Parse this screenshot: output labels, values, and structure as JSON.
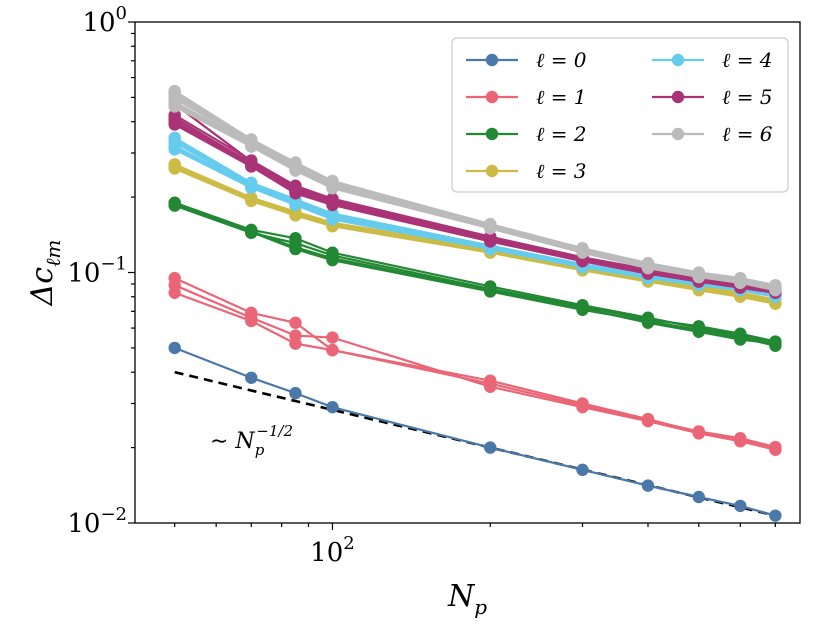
{
  "chart_data": {
    "type": "line",
    "xscale": "log",
    "yscale": "log",
    "xlim": [
      42,
      780
    ],
    "ylim": [
      0.01,
      1.0
    ],
    "xlabel": "N_p",
    "ylabel": "Δc_ℓm",
    "x_tick_labels": [
      {
        "base": "10",
        "exp": "2",
        "value": 100
      }
    ],
    "y_tick_labels": [
      {
        "base": "10",
        "exp": "−2",
        "value": 0.01
      },
      {
        "base": "10",
        "exp": "−1",
        "value": 0.1
      },
      {
        "base": "10",
        "exp": "0",
        "value": 1.0
      }
    ],
    "x": [
      50,
      70,
      85,
      100,
      200,
      300,
      400,
      500,
      600,
      700
    ],
    "legend": {
      "placement": "top-right",
      "columns": 2,
      "frame": true
    },
    "series": [
      {
        "name": "ℓ = 0",
        "color": "#4a78a8",
        "curves": [
          [
            0.05,
            0.038,
            0.033,
            0.029,
            0.02,
            0.0163,
            0.0141,
            0.0127,
            0.0117,
            0.0107
          ]
        ]
      },
      {
        "name": "ℓ = 1",
        "color": "#ea6677",
        "curves": [
          [
            0.095,
            0.069,
            0.063,
            0.049,
            0.037,
            0.03,
            0.026,
            0.023,
            0.0215,
            0.0198
          ],
          [
            0.089,
            0.066,
            0.056,
            0.055,
            0.035,
            0.029,
            0.0255,
            0.0228,
            0.0212,
            0.0196
          ],
          [
            0.083,
            0.064,
            0.052,
            0.049,
            0.036,
            0.0295,
            0.0258,
            0.0232,
            0.0218,
            0.0201
          ]
        ]
      },
      {
        "name": "ℓ = 2",
        "color": "#238833",
        "curves": [
          [
            0.19,
            0.148,
            0.137,
            0.12,
            0.088,
            0.074,
            0.066,
            0.06,
            0.056,
            0.052
          ],
          [
            0.187,
            0.145,
            0.124,
            0.112,
            0.084,
            0.071,
            0.064,
            0.059,
            0.055,
            0.051
          ],
          [
            0.185,
            0.144,
            0.131,
            0.117,
            0.086,
            0.073,
            0.065,
            0.061,
            0.057,
            0.053
          ],
          [
            0.188,
            0.146,
            0.126,
            0.114,
            0.085,
            0.072,
            0.063,
            0.058,
            0.054,
            0.052
          ]
        ]
      },
      {
        "name": "ℓ = 3",
        "color": "#ccbb44",
        "curves": [
          [
            0.27,
            0.199,
            0.175,
            0.158,
            0.124,
            0.105,
            0.095,
            0.087,
            0.082,
            0.077
          ],
          [
            0.265,
            0.196,
            0.171,
            0.155,
            0.122,
            0.103,
            0.093,
            0.086,
            0.081,
            0.076
          ],
          [
            0.26,
            0.193,
            0.169,
            0.153,
            0.12,
            0.102,
            0.092,
            0.085,
            0.08,
            0.075
          ],
          [
            0.268,
            0.198,
            0.173,
            0.157,
            0.123,
            0.104,
            0.094,
            0.088,
            0.083,
            0.078
          ],
          [
            0.262,
            0.195,
            0.17,
            0.154,
            0.121,
            0.103,
            0.093,
            0.086,
            0.081,
            0.076
          ]
        ]
      },
      {
        "name": "ℓ = 4",
        "color": "#66ccee",
        "curves": [
          [
            0.345,
            0.228,
            0.196,
            0.172,
            0.128,
            0.108,
            0.098,
            0.092,
            0.088,
            0.083
          ],
          [
            0.33,
            0.224,
            0.192,
            0.168,
            0.126,
            0.107,
            0.097,
            0.091,
            0.087,
            0.082
          ],
          [
            0.32,
            0.221,
            0.189,
            0.165,
            0.125,
            0.106,
            0.096,
            0.09,
            0.086,
            0.081
          ],
          [
            0.31,
            0.218,
            0.186,
            0.163,
            0.124,
            0.105,
            0.095,
            0.089,
            0.085,
            0.08
          ],
          [
            0.338,
            0.226,
            0.194,
            0.17,
            0.127,
            0.108,
            0.097,
            0.091,
            0.087,
            0.082
          ],
          [
            0.315,
            0.22,
            0.188,
            0.166,
            0.125,
            0.106,
            0.096,
            0.09,
            0.086,
            0.081
          ]
        ]
      },
      {
        "name": "ℓ = 5",
        "color": "#aa3377",
        "curves": [
          [
            0.425,
            0.28,
            0.222,
            0.197,
            0.139,
            0.115,
            0.103,
            0.096,
            0.091,
            0.086
          ],
          [
            0.41,
            0.274,
            0.218,
            0.193,
            0.137,
            0.113,
            0.101,
            0.094,
            0.089,
            0.085
          ],
          [
            0.4,
            0.27,
            0.212,
            0.19,
            0.135,
            0.112,
            0.1,
            0.093,
            0.088,
            0.084
          ],
          [
            0.39,
            0.265,
            0.207,
            0.186,
            0.133,
            0.111,
            0.099,
            0.092,
            0.087,
            0.083
          ],
          [
            0.47,
            0.278,
            0.22,
            0.195,
            0.138,
            0.114,
            0.102,
            0.095,
            0.09,
            0.085
          ],
          [
            0.415,
            0.272,
            0.215,
            0.192,
            0.136,
            0.112,
            0.1,
            0.094,
            0.088,
            0.084
          ],
          [
            0.395,
            0.267,
            0.21,
            0.188,
            0.134,
            0.111,
            0.099,
            0.092,
            0.087,
            0.083
          ]
        ]
      },
      {
        "name": "ℓ = 6",
        "color": "#bbbbbb",
        "curves": [
          [
            0.53,
            0.34,
            0.275,
            0.232,
            0.156,
            0.125,
            0.109,
            0.1,
            0.095,
            0.089
          ],
          [
            0.51,
            0.335,
            0.27,
            0.228,
            0.154,
            0.124,
            0.108,
            0.099,
            0.094,
            0.088
          ],
          [
            0.495,
            0.33,
            0.266,
            0.225,
            0.153,
            0.123,
            0.107,
            0.098,
            0.093,
            0.087
          ],
          [
            0.48,
            0.325,
            0.262,
            0.222,
            0.152,
            0.122,
            0.106,
            0.097,
            0.092,
            0.086
          ],
          [
            0.47,
            0.32,
            0.258,
            0.219,
            0.151,
            0.121,
            0.105,
            0.096,
            0.091,
            0.086
          ],
          [
            0.5,
            0.332,
            0.268,
            0.226,
            0.154,
            0.123,
            0.107,
            0.098,
            0.093,
            0.087
          ],
          [
            0.46,
            0.318,
            0.255,
            0.217,
            0.15,
            0.12,
            0.104,
            0.096,
            0.091,
            0.085
          ],
          [
            0.52,
            0.338,
            0.272,
            0.23,
            0.155,
            0.124,
            0.108,
            0.099,
            0.094,
            0.088
          ]
        ]
      }
    ],
    "reference_line": {
      "label": "∼ N_p^{−1/2}",
      "style": "dashed",
      "color": "#000000",
      "x": [
        50,
        700
      ],
      "y": [
        0.04,
        0.0107
      ]
    }
  }
}
